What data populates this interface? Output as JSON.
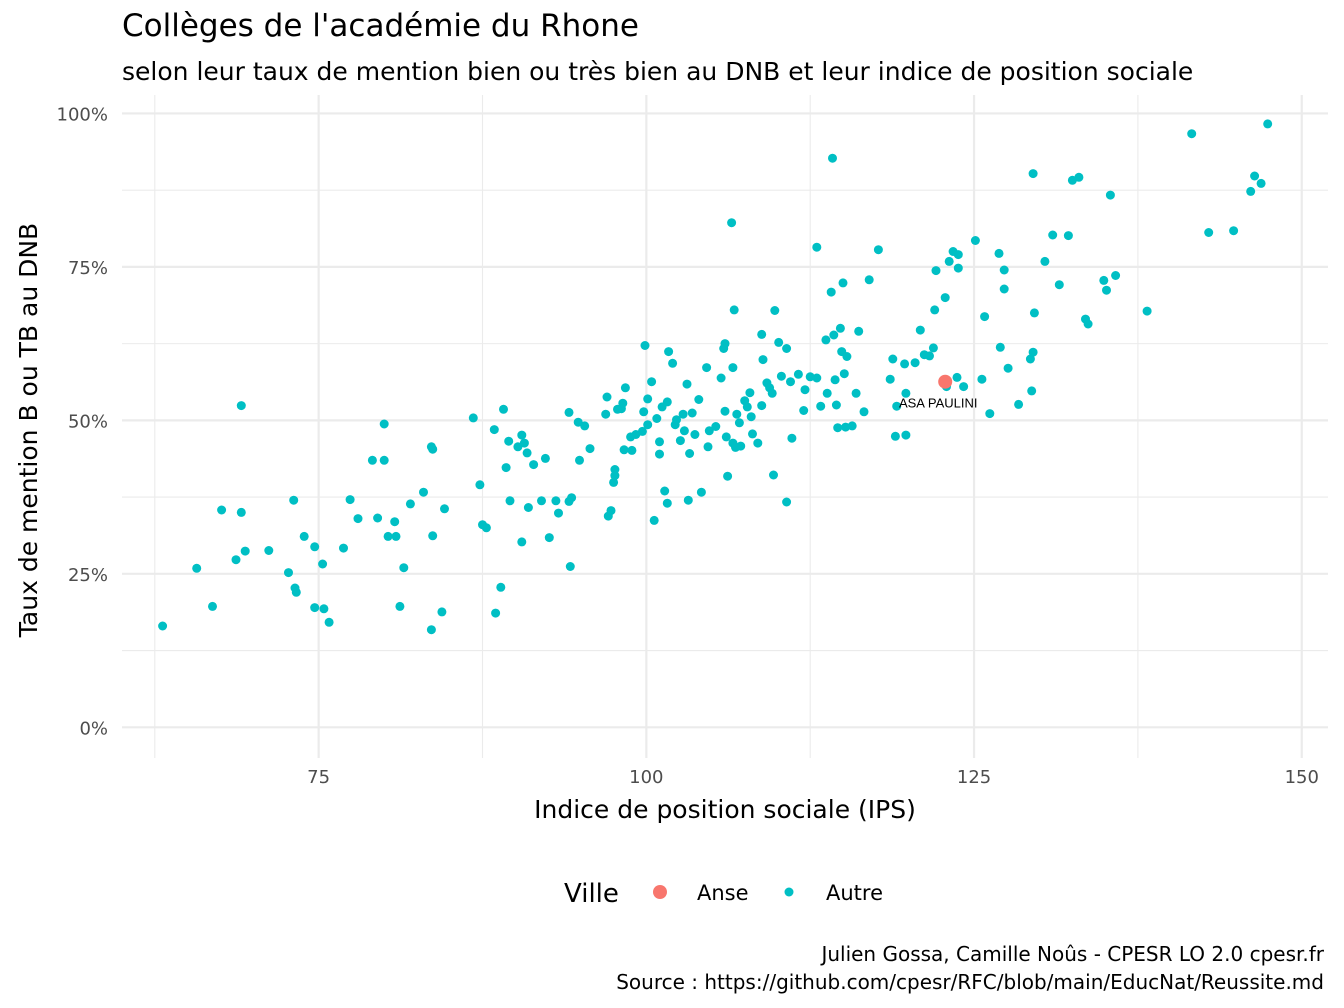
{
  "chart_data": {
    "type": "scatter",
    "title": "Collèges de l'académie du Rhone",
    "subtitle": "selon leur taux de mention bien ou très bien au DNB et leur indice de position sociale",
    "xlabel": "Indice de position sociale (IPS)",
    "ylabel": "Taux de mention B ou TB au DNB",
    "xlim": [
      60,
      152
    ],
    "ylim": [
      -0.05,
      1.03
    ],
    "x_ticks": [
      75,
      100,
      125,
      150
    ],
    "x_tick_labels": [
      "75",
      "100",
      "125",
      "150"
    ],
    "y_ticks": [
      0,
      0.25,
      0.5,
      0.75,
      1.0
    ],
    "y_tick_labels": [
      "0%",
      "25%",
      "50%",
      "75%",
      "100%"
    ],
    "grid": true,
    "legend": {
      "title": "Ville",
      "position": "bottom",
      "entries": [
        {
          "label": "Anse",
          "color": "#F8766D"
        },
        {
          "label": "Autre",
          "color": "#00BFC4"
        }
      ]
    },
    "annotations": [
      {
        "text": "ASA PAULINI",
        "x": 122.8,
        "y": 0.563
      }
    ],
    "series": [
      {
        "name": "Anse",
        "color": "#F8766D",
        "points": [
          [
            122.8,
            0.563
          ]
        ]
      },
      {
        "name": "Autre",
        "color": "#00BFC4",
        "points": [
          [
            63.1,
            0.165
          ],
          [
            65.7,
            0.259
          ],
          [
            66.9,
            0.197
          ],
          [
            67.6,
            0.354
          ],
          [
            68.7,
            0.273
          ],
          [
            69.1,
            0.524
          ],
          [
            69.1,
            0.35
          ],
          [
            69.4,
            0.287
          ],
          [
            71.2,
            0.288
          ],
          [
            72.7,
            0.252
          ],
          [
            73.1,
            0.37
          ],
          [
            73.2,
            0.227
          ],
          [
            73.3,
            0.22
          ],
          [
            73.9,
            0.311
          ],
          [
            74.7,
            0.195
          ],
          [
            74.7,
            0.294
          ],
          [
            75.4,
            0.193
          ],
          [
            75.3,
            0.266
          ],
          [
            75.8,
            0.171
          ],
          [
            76.9,
            0.292
          ],
          [
            77.4,
            0.371
          ],
          [
            78.0,
            0.34
          ],
          [
            79.1,
            0.435
          ],
          [
            79.5,
            0.341
          ],
          [
            80.0,
            0.435
          ],
          [
            80.0,
            0.494
          ],
          [
            80.3,
            0.311
          ],
          [
            80.8,
            0.335
          ],
          [
            80.9,
            0.311
          ],
          [
            81.2,
            0.197
          ],
          [
            81.5,
            0.26
          ],
          [
            82.0,
            0.364
          ],
          [
            83.0,
            0.383
          ],
          [
            83.6,
            0.457
          ],
          [
            83.7,
            0.453
          ],
          [
            83.6,
            0.159
          ],
          [
            83.7,
            0.312
          ],
          [
            84.4,
            0.188
          ],
          [
            84.6,
            0.356
          ],
          [
            86.8,
            0.504
          ],
          [
            87.3,
            0.395
          ],
          [
            87.5,
            0.33
          ],
          [
            87.8,
            0.325
          ],
          [
            88.4,
            0.485
          ],
          [
            88.5,
            0.186
          ],
          [
            88.9,
            0.228
          ],
          [
            89.1,
            0.518
          ],
          [
            89.3,
            0.423
          ],
          [
            89.5,
            0.466
          ],
          [
            89.6,
            0.369
          ],
          [
            90.2,
            0.457
          ],
          [
            90.5,
            0.476
          ],
          [
            90.5,
            0.302
          ],
          [
            90.7,
            0.463
          ],
          [
            90.9,
            0.447
          ],
          [
            91.0,
            0.358
          ],
          [
            91.4,
            0.428
          ],
          [
            92.0,
            0.369
          ],
          [
            92.3,
            0.438
          ],
          [
            92.6,
            0.309
          ],
          [
            93.1,
            0.369
          ],
          [
            93.3,
            0.349
          ],
          [
            94.1,
            0.513
          ],
          [
            94.1,
            0.368
          ],
          [
            94.2,
            0.262
          ],
          [
            94.3,
            0.374
          ],
          [
            94.8,
            0.497
          ],
          [
            94.9,
            0.435
          ],
          [
            95.3,
            0.491
          ],
          [
            95.7,
            0.454
          ],
          [
            96.9,
            0.51
          ],
          [
            97.0,
            0.538
          ],
          [
            97.1,
            0.344
          ],
          [
            97.3,
            0.353
          ],
          [
            97.5,
            0.399
          ],
          [
            97.6,
            0.42
          ],
          [
            97.6,
            0.41
          ],
          [
            97.8,
            0.518
          ],
          [
            98.1,
            0.519
          ],
          [
            98.2,
            0.528
          ],
          [
            98.3,
            0.452
          ],
          [
            98.4,
            0.553
          ],
          [
            98.8,
            0.473
          ],
          [
            98.9,
            0.451
          ],
          [
            99.2,
            0.477
          ],
          [
            99.7,
            0.482
          ],
          [
            99.8,
            0.514
          ],
          [
            99.9,
            0.622
          ],
          [
            100.1,
            0.493
          ],
          [
            100.1,
            0.535
          ],
          [
            100.4,
            0.563
          ],
          [
            100.6,
            0.337
          ],
          [
            100.8,
            0.503
          ],
          [
            101.0,
            0.465
          ],
          [
            101.0,
            0.445
          ],
          [
            101.2,
            0.522
          ],
          [
            101.4,
            0.385
          ],
          [
            101.6,
            0.53
          ],
          [
            101.6,
            0.365
          ],
          [
            101.7,
            0.612
          ],
          [
            102.0,
            0.593
          ],
          [
            102.2,
            0.493
          ],
          [
            102.3,
            0.501
          ],
          [
            102.6,
            0.467
          ],
          [
            102.8,
            0.51
          ],
          [
            102.9,
            0.483
          ],
          [
            103.1,
            0.559
          ],
          [
            103.3,
            0.446
          ],
          [
            103.2,
            0.37
          ],
          [
            103.5,
            0.512
          ],
          [
            103.7,
            0.477
          ],
          [
            104.0,
            0.534
          ],
          [
            104.2,
            0.383
          ],
          [
            104.6,
            0.586
          ],
          [
            104.7,
            0.457
          ],
          [
            104.8,
            0.483
          ],
          [
            105.3,
            0.49
          ],
          [
            105.7,
            0.569
          ],
          [
            105.9,
            0.617
          ],
          [
            106.0,
            0.625
          ],
          [
            106.0,
            0.515
          ],
          [
            106.1,
            0.473
          ],
          [
            106.2,
            0.409
          ],
          [
            106.5,
            0.822
          ],
          [
            106.6,
            0.586
          ],
          [
            106.6,
            0.463
          ],
          [
            106.7,
            0.68
          ],
          [
            106.8,
            0.456
          ],
          [
            106.9,
            0.51
          ],
          [
            107.1,
            0.496
          ],
          [
            107.2,
            0.458
          ],
          [
            107.5,
            0.532
          ],
          [
            107.7,
            0.522
          ],
          [
            107.9,
            0.545
          ],
          [
            108.0,
            0.506
          ],
          [
            108.1,
            0.478
          ],
          [
            108.5,
            0.463
          ],
          [
            108.8,
            0.64
          ],
          [
            108.8,
            0.524
          ],
          [
            108.9,
            0.599
          ],
          [
            109.2,
            0.561
          ],
          [
            109.4,
            0.553
          ],
          [
            109.6,
            0.544
          ],
          [
            109.7,
            0.411
          ],
          [
            109.8,
            0.679
          ],
          [
            110.1,
            0.627
          ],
          [
            110.3,
            0.572
          ],
          [
            110.7,
            0.617
          ],
          [
            110.7,
            0.367
          ],
          [
            111.0,
            0.563
          ],
          [
            111.1,
            0.471
          ],
          [
            111.6,
            0.575
          ],
          [
            112.0,
            0.516
          ],
          [
            112.1,
            0.55
          ],
          [
            112.5,
            0.571
          ],
          [
            113.0,
            0.782
          ],
          [
            113.0,
            0.569
          ],
          [
            113.3,
            0.523
          ],
          [
            113.7,
            0.631
          ],
          [
            113.8,
            0.544
          ],
          [
            114.1,
            0.709
          ],
          [
            114.2,
            0.927
          ],
          [
            114.3,
            0.639
          ],
          [
            114.4,
            0.566
          ],
          [
            114.5,
            0.525
          ],
          [
            114.6,
            0.488
          ],
          [
            114.8,
            0.65
          ],
          [
            114.9,
            0.612
          ],
          [
            115.0,
            0.724
          ],
          [
            115.1,
            0.576
          ],
          [
            115.2,
            0.489
          ],
          [
            115.3,
            0.604
          ],
          [
            115.7,
            0.491
          ],
          [
            116.0,
            0.544
          ],
          [
            116.2,
            0.645
          ],
          [
            116.6,
            0.514
          ],
          [
            117.0,
            0.729
          ],
          [
            117.7,
            0.778
          ],
          [
            118.6,
            0.567
          ],
          [
            118.8,
            0.6
          ],
          [
            119.0,
            0.474
          ],
          [
            119.1,
            0.523
          ],
          [
            119.7,
            0.592
          ],
          [
            119.8,
            0.476
          ],
          [
            119.8,
            0.544
          ],
          [
            120.5,
            0.594
          ],
          [
            120.9,
            0.647
          ],
          [
            121.2,
            0.607
          ],
          [
            121.6,
            0.605
          ],
          [
            121.9,
            0.618
          ],
          [
            122.0,
            0.68
          ],
          [
            122.1,
            0.744
          ],
          [
            122.8,
            0.7
          ],
          [
            122.9,
            0.555
          ],
          [
            123.1,
            0.759
          ],
          [
            123.4,
            0.775
          ],
          [
            123.7,
            0.57
          ],
          [
            123.8,
            0.748
          ],
          [
            123.8,
            0.77
          ],
          [
            124.2,
            0.555
          ],
          [
            125.1,
            0.793
          ],
          [
            125.6,
            0.567
          ],
          [
            125.8,
            0.669
          ],
          [
            126.2,
            0.511
          ],
          [
            126.9,
            0.772
          ],
          [
            127.0,
            0.619
          ],
          [
            127.3,
            0.714
          ],
          [
            127.3,
            0.745
          ],
          [
            127.6,
            0.585
          ],
          [
            128.4,
            0.526
          ],
          [
            129.3,
            0.6
          ],
          [
            129.4,
            0.548
          ],
          [
            129.5,
            0.902
          ],
          [
            129.5,
            0.611
          ],
          [
            129.6,
            0.675
          ],
          [
            130.4,
            0.759
          ],
          [
            131.0,
            0.802
          ],
          [
            131.5,
            0.721
          ],
          [
            132.2,
            0.801
          ],
          [
            132.5,
            0.891
          ],
          [
            133.0,
            0.896
          ],
          [
            133.5,
            0.665
          ],
          [
            133.7,
            0.657
          ],
          [
            134.9,
            0.728
          ],
          [
            135.1,
            0.712
          ],
          [
            135.4,
            0.867
          ],
          [
            135.8,
            0.736
          ],
          [
            138.2,
            0.678
          ],
          [
            141.6,
            0.967
          ],
          [
            142.9,
            0.806
          ],
          [
            144.8,
            0.809
          ],
          [
            146.1,
            0.873
          ],
          [
            146.4,
            0.898
          ],
          [
            146.9,
            0.886
          ],
          [
            147.4,
            0.983
          ]
        ]
      }
    ],
    "caption": [
      "Julien Gossa, Camille Noûs - CPESR LO 2.0 cpesr.fr",
      "Source : https://github.com/cpesr/RFC/blob/main/EducNat/Reussite.md"
    ]
  }
}
